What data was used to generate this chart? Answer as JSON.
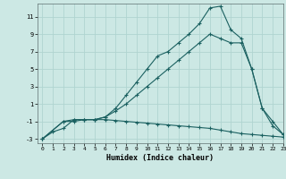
{
  "xlabel": "Humidex (Indice chaleur)",
  "bg_color": "#cce8e4",
  "grid_color": "#b0d4d0",
  "line_color": "#1a6060",
  "xlim": [
    -0.5,
    23
  ],
  "ylim": [
    -3.5,
    12.5
  ],
  "xticks": [
    0,
    1,
    2,
    3,
    4,
    5,
    6,
    7,
    8,
    9,
    10,
    11,
    12,
    13,
    14,
    15,
    16,
    17,
    18,
    19,
    20,
    21,
    22,
    23
  ],
  "yticks": [
    -3,
    -1,
    1,
    3,
    5,
    7,
    9,
    11
  ],
  "line1_x": [
    0,
    1,
    2,
    3,
    4,
    5,
    6,
    7,
    8,
    9,
    10,
    11,
    12,
    13,
    14,
    15,
    16,
    17,
    18,
    19,
    20,
    21,
    22,
    23
  ],
  "line1_y": [
    -3,
    -2.2,
    -1.8,
    -0.8,
    -0.8,
    -0.8,
    -0.8,
    -0.9,
    -1.0,
    -1.1,
    -1.2,
    -1.3,
    -1.4,
    -1.5,
    -1.6,
    -1.7,
    -1.8,
    -2.0,
    -2.2,
    -2.4,
    -2.5,
    -2.6,
    -2.7,
    -2.8
  ],
  "line2_x": [
    0,
    2,
    3,
    4,
    5,
    6,
    7,
    8,
    9,
    10,
    11,
    12,
    13,
    14,
    15,
    16,
    17,
    18,
    19,
    20,
    21,
    22,
    23
  ],
  "line2_y": [
    -3,
    -1,
    -1,
    -0.8,
    -0.8,
    -0.5,
    0.2,
    1.0,
    2.0,
    3.0,
    4.0,
    5.0,
    6.0,
    7.0,
    8.0,
    9.0,
    8.5,
    8.0,
    8.0,
    5.0,
    0.5,
    -1.5,
    -2.5
  ],
  "line3_x": [
    0,
    2,
    3,
    4,
    5,
    6,
    7,
    8,
    9,
    10,
    11,
    12,
    13,
    14,
    15,
    16,
    17,
    18,
    19,
    20,
    21,
    22,
    23
  ],
  "line3_y": [
    -3,
    -1,
    -0.8,
    -0.8,
    -0.8,
    -0.5,
    0.5,
    2.0,
    3.5,
    5.0,
    6.5,
    7.0,
    8.0,
    9.0,
    10.2,
    12.0,
    12.2,
    9.5,
    8.5,
    5.0,
    0.5,
    -1,
    -2.5
  ],
  "marker": "+"
}
